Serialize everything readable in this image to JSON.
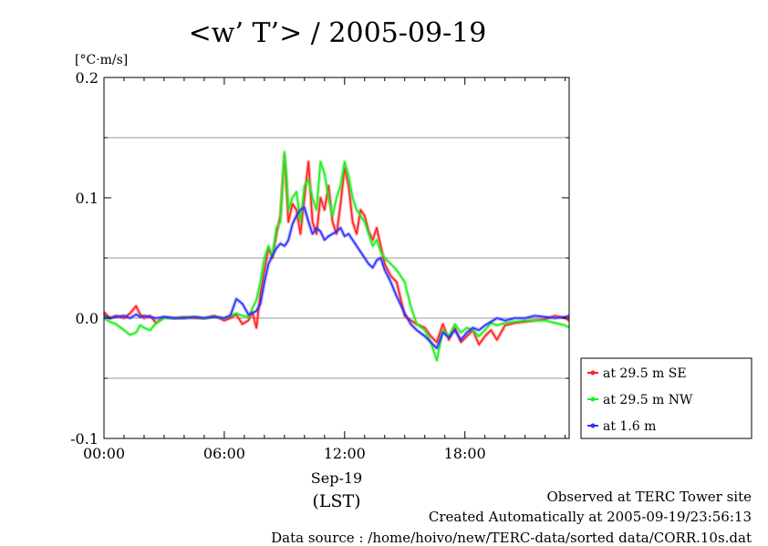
{
  "chart_data": {
    "type": "line",
    "title": "<w’ T’> / 2005-09-19",
    "ylabel": "[°C·m/s]",
    "xlabel": "(LST)",
    "date_label": "Sep-19",
    "xlim": [
      0,
      23.2
    ],
    "ylim": [
      -0.1,
      0.2
    ],
    "grid": true,
    "legend_position": "bottom-right-outside",
    "x_ticks": [
      {
        "value": 0,
        "label": "00:00"
      },
      {
        "value": 6,
        "label": "06:00"
      },
      {
        "value": 12,
        "label": "12:00"
      },
      {
        "value": 18,
        "label": "18:00"
      }
    ],
    "y_ticks": [
      {
        "value": -0.1,
        "label": "-0.1"
      },
      {
        "value": 0.0,
        "label": "0.0"
      },
      {
        "value": 0.1,
        "label": "0.1"
      },
      {
        "value": 0.2,
        "label": "0.2"
      }
    ],
    "y_minor": [
      -0.05,
      0.05,
      0.15
    ],
    "series": [
      {
        "name": "at 29.5 m SE",
        "color": "#ff2020",
        "x": [
          0,
          0.3,
          0.6,
          1,
          1.3,
          1.6,
          1.8,
          2,
          2.3,
          2.6,
          3,
          3.5,
          4,
          4.5,
          5,
          5.5,
          6,
          6.3,
          6.6,
          6.9,
          7.2,
          7.4,
          7.6,
          7.8,
          8,
          8.2,
          8.4,
          8.6,
          8.8,
          9,
          9.1,
          9.2,
          9.4,
          9.6,
          9.8,
          10,
          10.2,
          10.4,
          10.6,
          10.8,
          11,
          11.2,
          11.4,
          11.6,
          11.8,
          12,
          12.2,
          12.4,
          12.6,
          12.8,
          13,
          13.2,
          13.4,
          13.6,
          13.8,
          14,
          14.3,
          14.6,
          15,
          15.3,
          15.6,
          16,
          16.3,
          16.6,
          16.9,
          17.2,
          17.5,
          17.8,
          18.1,
          18.4,
          18.7,
          19,
          19.3,
          19.6,
          20,
          20.5,
          21,
          21.5,
          22,
          22.5,
          23,
          23.2
        ],
        "y": [
          0.005,
          0.0,
          0.002,
          0.0,
          0.004,
          0.01,
          0.003,
          0.0,
          0.002,
          -0.004,
          0.001,
          0.0,
          0.001,
          0.0,
          0.0,
          0.002,
          -0.002,
          0.0,
          0.003,
          -0.005,
          -0.002,
          0.005,
          -0.008,
          0.02,
          0.04,
          0.058,
          0.05,
          0.07,
          0.085,
          0.135,
          0.11,
          0.08,
          0.095,
          0.09,
          0.07,
          0.1,
          0.13,
          0.08,
          0.07,
          0.1,
          0.09,
          0.11,
          0.08,
          0.07,
          0.095,
          0.125,
          0.11,
          0.08,
          0.07,
          0.09,
          0.085,
          0.072,
          0.065,
          0.075,
          0.06,
          0.045,
          0.035,
          0.03,
          0.002,
          -0.002,
          -0.005,
          -0.008,
          -0.015,
          -0.02,
          -0.005,
          -0.018,
          -0.008,
          -0.02,
          -0.015,
          -0.01,
          -0.022,
          -0.015,
          -0.01,
          -0.018,
          -0.006,
          -0.004,
          -0.003,
          -0.002,
          -0.001,
          0.002,
          0.0,
          -0.002
        ]
      },
      {
        "name": "at 29.5 m NW",
        "color": "#20ee20",
        "x": [
          0,
          0.3,
          0.6,
          1,
          1.3,
          1.6,
          1.8,
          2,
          2.3,
          2.6,
          3,
          3.5,
          4,
          4.5,
          5,
          5.5,
          6,
          6.3,
          6.6,
          6.9,
          7.2,
          7.4,
          7.6,
          7.8,
          8,
          8.2,
          8.4,
          8.6,
          8.8,
          9,
          9.1,
          9.2,
          9.4,
          9.6,
          9.8,
          10,
          10.2,
          10.4,
          10.6,
          10.8,
          11,
          11.2,
          11.4,
          11.6,
          11.8,
          12,
          12.2,
          12.4,
          12.6,
          12.8,
          13,
          13.2,
          13.4,
          13.6,
          13.8,
          14,
          14.3,
          14.6,
          15,
          15.3,
          15.6,
          16,
          16.3,
          16.6,
          16.9,
          17.2,
          17.5,
          17.8,
          18.1,
          18.4,
          18.7,
          19,
          19.3,
          19.6,
          20,
          20.5,
          21,
          21.5,
          22,
          22.5,
          23,
          23.2
        ],
        "y": [
          0.0,
          -0.003,
          -0.005,
          -0.01,
          -0.014,
          -0.012,
          -0.006,
          -0.008,
          -0.01,
          -0.004,
          0.0,
          0.0,
          0.0,
          0.001,
          0.0,
          0.001,
          0.0,
          0.002,
          0.004,
          0.002,
          0.001,
          0.008,
          0.015,
          0.03,
          0.05,
          0.06,
          0.052,
          0.075,
          0.08,
          0.138,
          0.12,
          0.09,
          0.1,
          0.105,
          0.08,
          0.11,
          0.115,
          0.1,
          0.09,
          0.13,
          0.12,
          0.1,
          0.085,
          0.1,
          0.11,
          0.13,
          0.118,
          0.1,
          0.09,
          0.085,
          0.08,
          0.07,
          0.06,
          0.065,
          0.055,
          0.05,
          0.045,
          0.04,
          0.03,
          0.01,
          -0.005,
          -0.01,
          -0.02,
          -0.035,
          -0.01,
          -0.015,
          -0.005,
          -0.012,
          -0.008,
          -0.01,
          -0.015,
          -0.01,
          -0.004,
          -0.006,
          -0.004,
          -0.003,
          -0.002,
          -0.002,
          -0.002,
          -0.004,
          -0.006,
          -0.008
        ]
      },
      {
        "name": "at 1.6 m",
        "color": "#3030ff",
        "x": [
          0,
          0.3,
          0.6,
          1,
          1.3,
          1.6,
          1.8,
          2,
          2.3,
          2.6,
          3,
          3.5,
          4,
          4.5,
          5,
          5.5,
          6,
          6.3,
          6.6,
          6.9,
          7.2,
          7.4,
          7.6,
          7.8,
          8,
          8.2,
          8.4,
          8.6,
          8.8,
          9,
          9.1,
          9.2,
          9.4,
          9.6,
          9.8,
          10,
          10.2,
          10.4,
          10.6,
          10.8,
          11,
          11.2,
          11.4,
          11.6,
          11.8,
          12,
          12.2,
          12.4,
          12.6,
          12.8,
          13,
          13.2,
          13.4,
          13.6,
          13.8,
          14,
          14.3,
          14.6,
          15,
          15.3,
          15.6,
          16,
          16.3,
          16.6,
          16.9,
          17.2,
          17.5,
          17.8,
          18.1,
          18.4,
          18.7,
          19,
          19.3,
          19.6,
          20,
          20.5,
          21,
          21.5,
          22,
          22.5,
          23,
          23.2
        ],
        "y": [
          0.002,
          0.0,
          0.001,
          0.002,
          0.0,
          0.003,
          0.001,
          0.002,
          0.001,
          0.0,
          0.001,
          0.0,
          0.0,
          0.001,
          0.0,
          0.001,
          0.0,
          0.002,
          0.016,
          0.012,
          0.003,
          0.004,
          0.006,
          0.012,
          0.03,
          0.045,
          0.052,
          0.058,
          0.062,
          0.06,
          0.062,
          0.065,
          0.078,
          0.085,
          0.09,
          0.092,
          0.08,
          0.07,
          0.075,
          0.072,
          0.065,
          0.068,
          0.07,
          0.072,
          0.075,
          0.068,
          0.07,
          0.065,
          0.06,
          0.055,
          0.05,
          0.045,
          0.042,
          0.048,
          0.05,
          0.04,
          0.03,
          0.018,
          0.004,
          -0.005,
          -0.01,
          -0.015,
          -0.02,
          -0.025,
          -0.012,
          -0.016,
          -0.01,
          -0.018,
          -0.012,
          -0.008,
          -0.01,
          -0.006,
          -0.003,
          0.0,
          -0.002,
          0.0,
          0.0,
          0.002,
          0.001,
          0.0,
          0.001,
          0.002
        ]
      }
    ]
  },
  "footer": {
    "site": "Observed at TERC Tower site",
    "created": "Created Automatically at 2005-09-19/23:56:13",
    "source": "Data source : /home/hoivo/new/TERC-data/sorted data/CORR.10s.dat"
  }
}
